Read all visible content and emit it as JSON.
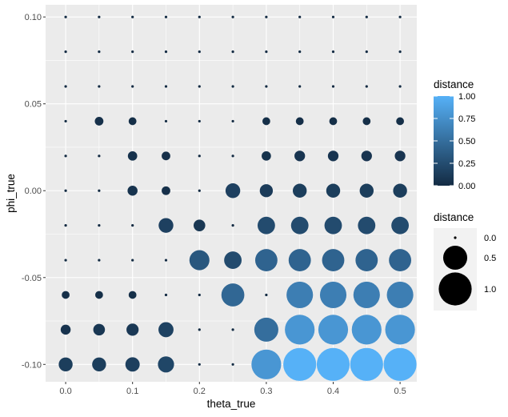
{
  "chart_data": {
    "type": "scatter",
    "xlabel": "theta_true",
    "ylabel": "phi_true",
    "xlim": [
      -0.03,
      0.525
    ],
    "ylim": [
      -0.11,
      0.107
    ],
    "x_ticks": [
      0.0,
      0.1,
      0.2,
      0.3,
      0.4,
      0.5
    ],
    "x_tick_labels": [
      "0.0",
      "0.1",
      "0.2",
      "0.3",
      "0.4",
      "0.5"
    ],
    "y_ticks": [
      0.1,
      0.05,
      0.0,
      -0.05,
      -0.1
    ],
    "y_tick_labels": [
      "0.10",
      "0.05",
      "0.00",
      "-0.05",
      "-0.10"
    ],
    "x_values": [
      0.0,
      0.05,
      0.1,
      0.15,
      0.2,
      0.25,
      0.3,
      0.35,
      0.4,
      0.45,
      0.5
    ],
    "y_values": [
      0.1,
      0.08,
      0.06,
      0.04,
      0.02,
      0.0,
      -0.02,
      -0.04,
      -0.06,
      -0.08,
      -0.1
    ],
    "distance_grid": [
      [
        0.0,
        0.0,
        0.0,
        0.0,
        0.0,
        0.0,
        0.0,
        0.0,
        0.0,
        0.0,
        0.0
      ],
      [
        0.0,
        0.0,
        0.0,
        0.0,
        0.0,
        0.0,
        0.0,
        0.0,
        0.0,
        0.0,
        0.0
      ],
      [
        0.0,
        0.0,
        0.0,
        0.0,
        0.0,
        0.0,
        0.0,
        0.0,
        0.0,
        0.0,
        0.0
      ],
      [
        0.0,
        0.04,
        0.03,
        0.0,
        0.0,
        0.0,
        0.03,
        0.03,
        0.03,
        0.03,
        0.03
      ],
      [
        0.0,
        0.0,
        0.05,
        0.04,
        0.0,
        0.0,
        0.05,
        0.07,
        0.07,
        0.07,
        0.07
      ],
      [
        0.0,
        0.0,
        0.06,
        0.04,
        0.0,
        0.16,
        0.12,
        0.14,
        0.14,
        0.14,
        0.14
      ],
      [
        0.0,
        0.0,
        0.0,
        0.16,
        0.09,
        0.0,
        0.24,
        0.24,
        0.24,
        0.24,
        0.24
      ],
      [
        0.0,
        0.0,
        0.0,
        0.0,
        0.33,
        0.24,
        0.42,
        0.42,
        0.42,
        0.42,
        0.42
      ],
      [
        0.03,
        0.03,
        0.03,
        0.0,
        0.0,
        0.45,
        0.0,
        0.62,
        0.62,
        0.62,
        0.62
      ],
      [
        0.06,
        0.09,
        0.1,
        0.17,
        0.0,
        0.0,
        0.5,
        0.8,
        0.8,
        0.8,
        0.8
      ],
      [
        0.14,
        0.14,
        0.15,
        0.2,
        0.0,
        0.0,
        0.8,
        1.0,
        1.0,
        1.0,
        1.0
      ]
    ],
    "legend_color": {
      "title": "distance",
      "ticks": [
        1.0,
        0.75,
        0.5,
        0.25,
        0.0
      ],
      "tick_labels": [
        "1.00",
        "0.75",
        "0.50",
        "0.25",
        "0.00"
      ],
      "low_color": "#132B43",
      "high_color": "#56B1F7"
    },
    "legend_size": {
      "title": "distance",
      "keys": [
        0.0,
        0.5,
        1.0
      ],
      "labels": [
        "0.0",
        "0.5",
        "1.0"
      ],
      "key_color": "#000000"
    },
    "panel_bg": "#EBEBEB",
    "grid": true,
    "legend_position": "right"
  }
}
